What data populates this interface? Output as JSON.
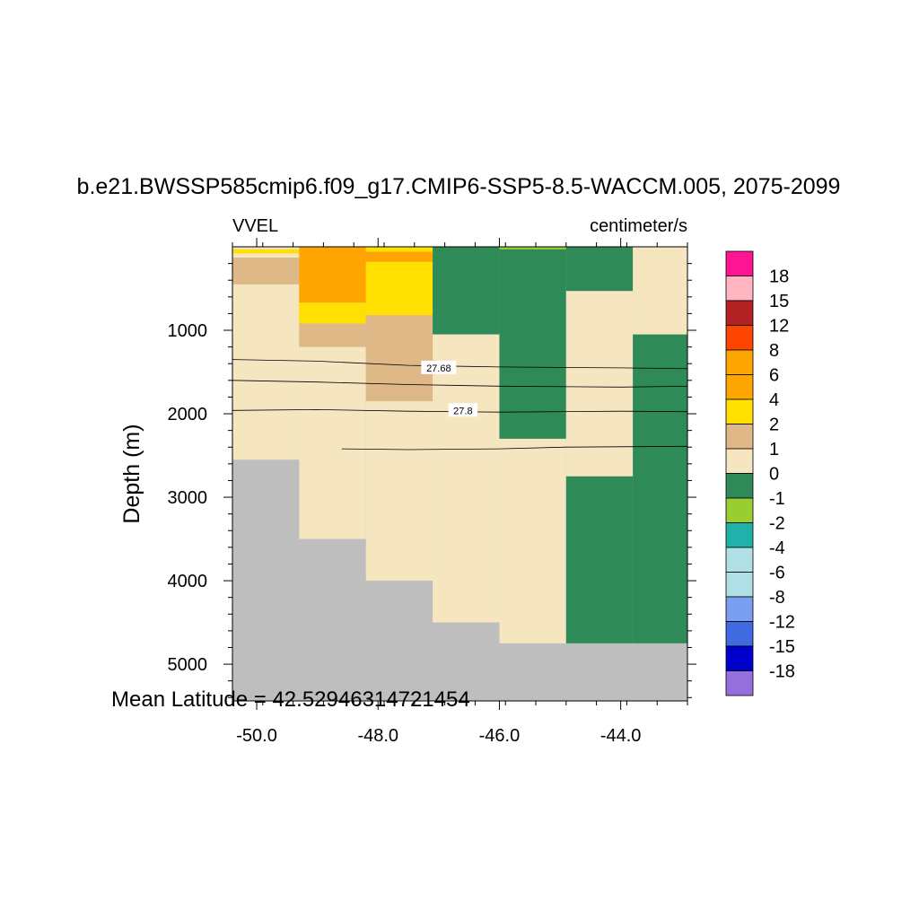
{
  "chart_data": {
    "type": "heatmap",
    "title": "b.e21.BWSSP585cmip6.f09_g17.CMIP6-SSP5-8.5-WACCM.005, 2075-2099",
    "variable_label": "VVEL",
    "units_label": "centimeter/s",
    "xlabel": "",
    "ylabel": "Depth (m)",
    "footer": "Mean Latitude = 42.52946314721454",
    "xlim": [
      -50.4,
      -42.9
    ],
    "ylim": [
      5440,
      0
    ],
    "y_reversed": true,
    "x_ticks": [
      {
        "value": -50.0,
        "label": "-50.0"
      },
      {
        "value": -48.0,
        "label": "-48.0"
      },
      {
        "value": -46.0,
        "label": "-46.0"
      },
      {
        "value": -44.0,
        "label": "-44.0"
      }
    ],
    "y_ticks": [
      {
        "value": 1000,
        "label": "1000"
      },
      {
        "value": 2000,
        "label": "2000"
      },
      {
        "value": 3000,
        "label": "3000"
      },
      {
        "value": 4000,
        "label": "4000"
      },
      {
        "value": 5000,
        "label": "5000"
      }
    ],
    "colorbar": {
      "labels": [
        "18",
        "15",
        "12",
        "8",
        "6",
        "4",
        "2",
        "1",
        "0",
        "-1",
        "-2",
        "-4",
        "-6",
        "-8",
        "-12",
        "-15",
        "-18"
      ],
      "colors": [
        "#ff1493",
        "#ffb6c1",
        "#b22222",
        "#ff4500",
        "#ffa500",
        "#ffa500",
        "#ffe000",
        "#deb887",
        "#f5e6c0",
        "#2e8b57",
        "#9acd32",
        "#20b2aa",
        "#b0e0e6",
        "#b0e0e6",
        "#7b9ff0",
        "#4169e1",
        "#0000cd",
        "#9370db"
      ]
    },
    "missing_color": "#bebebe",
    "cells": [
      {
        "x": [
          -50.4,
          -49.3
        ],
        "y": [
          0,
          30
        ],
        "value": 0,
        "color": "#f5e6c0"
      },
      {
        "x": [
          -50.4,
          -49.3
        ],
        "y": [
          30,
          80
        ],
        "value": 2.5,
        "color": "#ffe000"
      },
      {
        "x": [
          -50.4,
          -49.3
        ],
        "y": [
          80,
          130
        ],
        "value": 0,
        "color": "#f5e6c0"
      },
      {
        "x": [
          -50.4,
          -49.3
        ],
        "y": [
          130,
          450
        ],
        "value": 1.5,
        "color": "#deb887"
      },
      {
        "x": [
          -50.4,
          -49.3
        ],
        "y": [
          450,
          2550
        ],
        "value": 0.5,
        "color": "#f5e6c0"
      },
      {
        "x": [
          -49.3,
          -48.2
        ],
        "y": [
          0,
          670
        ],
        "value": 5,
        "color": "#ffa500"
      },
      {
        "x": [
          -49.3,
          -48.2
        ],
        "y": [
          670,
          920
        ],
        "value": 3,
        "color": "#ffe000"
      },
      {
        "x": [
          -49.3,
          -48.2
        ],
        "y": [
          920,
          1200
        ],
        "value": 1.5,
        "color": "#deb887"
      },
      {
        "x": [
          -49.3,
          -48.2
        ],
        "y": [
          1200,
          3500
        ],
        "value": 0.5,
        "color": "#f5e6c0"
      },
      {
        "x": [
          -48.2,
          -47.1
        ],
        "y": [
          0,
          60
        ],
        "value": 3,
        "color": "#ffe000"
      },
      {
        "x": [
          -48.2,
          -47.1
        ],
        "y": [
          60,
          180
        ],
        "value": 5,
        "color": "#ffa500"
      },
      {
        "x": [
          -48.2,
          -47.1
        ],
        "y": [
          180,
          820
        ],
        "value": 3,
        "color": "#ffe000"
      },
      {
        "x": [
          -48.2,
          -47.1
        ],
        "y": [
          820,
          1850
        ],
        "value": 1.5,
        "color": "#deb887"
      },
      {
        "x": [
          -48.2,
          -47.1
        ],
        "y": [
          1850,
          4000
        ],
        "value": 0.5,
        "color": "#f5e6c0"
      },
      {
        "x": [
          -47.1,
          -46.0
        ],
        "y": [
          0,
          1050
        ],
        "value": -0.5,
        "color": "#2e8b57"
      },
      {
        "x": [
          -47.1,
          -46.0
        ],
        "y": [
          1050,
          4500
        ],
        "value": 0.5,
        "color": "#f5e6c0"
      },
      {
        "x": [
          -46.0,
          -44.9
        ],
        "y": [
          0,
          30
        ],
        "value": -1.5,
        "color": "#9acd32"
      },
      {
        "x": [
          -46.0,
          -44.9
        ],
        "y": [
          30,
          2300
        ],
        "value": -0.5,
        "color": "#2e8b57"
      },
      {
        "x": [
          -46.0,
          -44.9
        ],
        "y": [
          2300,
          4750
        ],
        "value": 0.5,
        "color": "#f5e6c0"
      },
      {
        "x": [
          -44.9,
          -43.8
        ],
        "y": [
          0,
          530
        ],
        "value": -0.5,
        "color": "#2e8b57"
      },
      {
        "x": [
          -44.9,
          -43.8
        ],
        "y": [
          530,
          2750
        ],
        "value": 0.5,
        "color": "#f5e6c0"
      },
      {
        "x": [
          -44.9,
          -43.8
        ],
        "y": [
          2750,
          4750
        ],
        "value": -0.5,
        "color": "#2e8b57"
      },
      {
        "x": [
          -43.8,
          -42.9
        ],
        "y": [
          0,
          1050
        ],
        "value": 0.5,
        "color": "#f5e6c0"
      },
      {
        "x": [
          -43.8,
          -42.9
        ],
        "y": [
          1050,
          4750
        ],
        "value": -0.5,
        "color": "#2e8b57"
      }
    ],
    "contours": [
      {
        "label": "27.68",
        "label_at": [
          -47.0,
          1450
        ],
        "points": [
          [
            -50.4,
            1350
          ],
          [
            -49.0,
            1370
          ],
          [
            -47.5,
            1420
          ],
          [
            -46.0,
            1440
          ],
          [
            -44.0,
            1450
          ],
          [
            -42.9,
            1460
          ]
        ]
      },
      {
        "label": "",
        "points": [
          [
            -50.4,
            1600
          ],
          [
            -49.0,
            1620
          ],
          [
            -47.5,
            1650
          ],
          [
            -46.0,
            1670
          ],
          [
            -44.0,
            1680
          ],
          [
            -42.9,
            1670
          ]
        ]
      },
      {
        "label": "27.8",
        "label_at": [
          -46.6,
          1960
        ],
        "points": [
          [
            -50.4,
            1960
          ],
          [
            -49.0,
            1950
          ],
          [
            -47.5,
            1970
          ],
          [
            -46.0,
            1980
          ],
          [
            -44.0,
            1970
          ],
          [
            -42.9,
            1975
          ]
        ]
      },
      {
        "label": "",
        "points": [
          [
            -48.6,
            2420
          ],
          [
            -47.5,
            2430
          ],
          [
            -46.0,
            2420
          ],
          [
            -44.9,
            2400
          ],
          [
            -42.9,
            2390
          ]
        ]
      }
    ]
  }
}
